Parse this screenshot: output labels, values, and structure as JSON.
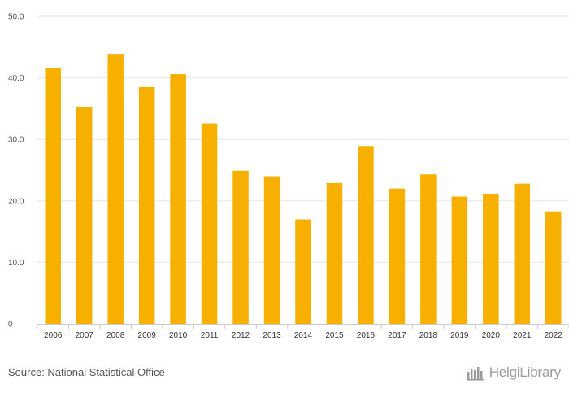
{
  "chart_data": {
    "type": "bar",
    "categories": [
      "2006",
      "2007",
      "2008",
      "2009",
      "2010",
      "2011",
      "2012",
      "2013",
      "2014",
      "2015",
      "2016",
      "2017",
      "2018",
      "2019",
      "2020",
      "2021",
      "2022"
    ],
    "values": [
      41.6,
      35.3,
      43.9,
      38.5,
      40.6,
      32.6,
      24.9,
      24.0,
      17.0,
      22.9,
      28.8,
      22.0,
      24.3,
      20.7,
      21.1,
      22.8,
      18.3
    ],
    "ylim": [
      0,
      50
    ],
    "yticks": [
      "0",
      "10.0",
      "20.0",
      "30.0",
      "40.0",
      "50.0"
    ],
    "grid": true,
    "bar_color": "#F7AF00",
    "grid_color": "#e6e6e6"
  },
  "footer": {
    "source": "Source: National Statistical Office",
    "brand_icon": "helgi-library-logo-icon",
    "brand": "HelgiLibrary"
  }
}
